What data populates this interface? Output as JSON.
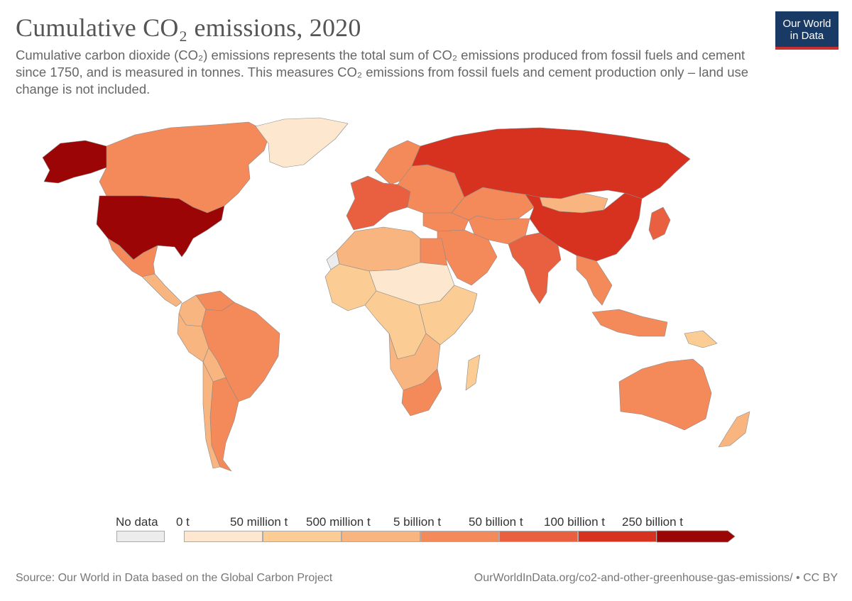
{
  "header": {
    "title": "Cumulative CO₂ emissions, 2020",
    "subtitle": "Cumulative carbon dioxide (CO₂) emissions represents the total sum of CO₂ emissions produced from fossil fuels and cement since 1750, and is measured in tonnes. This measures CO₂ emissions from fossil fuels and cement production only – land use change is not included."
  },
  "logo": {
    "line1": "Our World",
    "line2": "in Data"
  },
  "legend": {
    "no_data": {
      "label": "No data",
      "color": "#ececec"
    },
    "bins": [
      {
        "label": "0 t",
        "color": "#fde8cf"
      },
      {
        "label": "50 million t",
        "color": "#fbcc94"
      },
      {
        "label": "500 million t",
        "color": "#f9b580"
      },
      {
        "label": "5 billion t",
        "color": "#f4895a"
      },
      {
        "label": "50 billion t",
        "color": "#e8603f"
      },
      {
        "label": "100 billion t",
        "color": "#d6321f"
      },
      {
        "label": "250 billion t",
        "color": "#9b0505"
      }
    ]
  },
  "map_data": {
    "regions": [
      {
        "name": "Alaska",
        "value_bin": "250 billion t",
        "color": "#9b0505"
      },
      {
        "name": "Canada",
        "value_bin": "5 billion t",
        "color": "#f4895a"
      },
      {
        "name": "Greenland",
        "value_bin": "0 t",
        "color": "#fde8cf"
      },
      {
        "name": "United States",
        "value_bin": "250 billion t",
        "color": "#9b0505"
      },
      {
        "name": "Mexico",
        "value_bin": "5 billion t",
        "color": "#f4895a"
      },
      {
        "name": "Central America",
        "value_bin": "500 million t",
        "color": "#f9b580"
      },
      {
        "name": "Colombia",
        "value_bin": "500 million t",
        "color": "#f9b580"
      },
      {
        "name": "Venezuela",
        "value_bin": "5 billion t",
        "color": "#f4895a"
      },
      {
        "name": "Peru",
        "value_bin": "500 million t",
        "color": "#f9b580"
      },
      {
        "name": "Brazil",
        "value_bin": "5 billion t",
        "color": "#f4895a"
      },
      {
        "name": "Bolivia",
        "value_bin": "500 million t",
        "color": "#f9b580"
      },
      {
        "name": "Chile",
        "value_bin": "500 million t",
        "color": "#f9b580"
      },
      {
        "name": "Argentina",
        "value_bin": "5 billion t",
        "color": "#f4895a"
      },
      {
        "name": "Western Europe",
        "value_bin": "50 billion t",
        "color": "#e8603f"
      },
      {
        "name": "Scandinavia",
        "value_bin": "5 billion t",
        "color": "#f4895a"
      },
      {
        "name": "Eastern Europe",
        "value_bin": "5 billion t",
        "color": "#f4895a"
      },
      {
        "name": "Russia",
        "value_bin": "100 billion t",
        "color": "#d6321f"
      },
      {
        "name": "Kazakhstan",
        "value_bin": "5 billion t",
        "color": "#f4895a"
      },
      {
        "name": "Mongolia",
        "value_bin": "500 million t",
        "color": "#f9b580"
      },
      {
        "name": "China",
        "value_bin": "100 billion t",
        "color": "#d6321f"
      },
      {
        "name": "Japan",
        "value_bin": "50 billion t",
        "color": "#e8603f"
      },
      {
        "name": "India",
        "value_bin": "50 billion t",
        "color": "#e8603f"
      },
      {
        "name": "Middle East",
        "value_bin": "5 billion t",
        "color": "#f4895a"
      },
      {
        "name": "Turkey",
        "value_bin": "5 billion t",
        "color": "#f4895a"
      },
      {
        "name": "Central Asia",
        "value_bin": "5 billion t",
        "color": "#f4895a"
      },
      {
        "name": "Southeast Asia",
        "value_bin": "5 billion t",
        "color": "#f4895a"
      },
      {
        "name": "Indonesia",
        "value_bin": "5 billion t",
        "color": "#f4895a"
      },
      {
        "name": "Papua New Guinea",
        "value_bin": "50 million t",
        "color": "#fbcc94"
      },
      {
        "name": "North Africa",
        "value_bin": "500 million t",
        "color": "#f9b580"
      },
      {
        "name": "Egypt",
        "value_bin": "5 billion t",
        "color": "#f4895a"
      },
      {
        "name": "West Africa",
        "value_bin": "50 million t",
        "color": "#fbcc94"
      },
      {
        "name": "Sahel",
        "value_bin": "0 t",
        "color": "#fde8cf"
      },
      {
        "name": "Central Africa",
        "value_bin": "50 million t",
        "color": "#fbcc94"
      },
      {
        "name": "East Africa",
        "value_bin": "50 million t",
        "color": "#fbcc94"
      },
      {
        "name": "Southern Africa",
        "value_bin": "500 million t",
        "color": "#f9b580"
      },
      {
        "name": "South Africa",
        "value_bin": "5 billion t",
        "color": "#f4895a"
      },
      {
        "name": "Madagascar",
        "value_bin": "50 million t",
        "color": "#fbcc94"
      },
      {
        "name": "Western Sahara",
        "value_bin": "No data",
        "color": "#ececec"
      },
      {
        "name": "Australia",
        "value_bin": "5 billion t",
        "color": "#f4895a"
      },
      {
        "name": "New Zealand",
        "value_bin": "500 million t",
        "color": "#f9b580"
      }
    ]
  },
  "footer": {
    "source": "Source: Our World in Data based on the Global Carbon Project",
    "url": "OurWorldInData.org/co2-and-other-greenhouse-gas-emissions/ • CC BY"
  }
}
